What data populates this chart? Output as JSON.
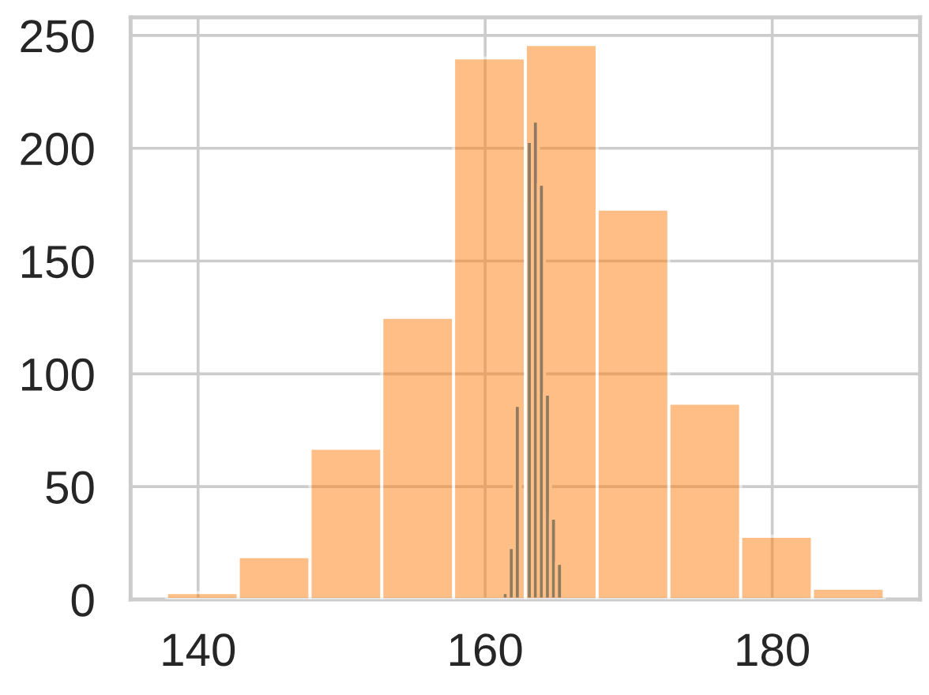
{
  "chart_data": {
    "type": "histogram",
    "bins": [
      137.8,
      142.8,
      147.8,
      152.8,
      157.8,
      162.8,
      167.8,
      172.8,
      177.8,
      182.8,
      187.8
    ],
    "series": [
      {
        "color": "#1f77b4",
        "bins": [
          161.19,
          161.61,
          162.03,
          162.45,
          162.87,
          163.29,
          163.71,
          164.13,
          164.55,
          164.97,
          165.39
        ],
        "values": [
          3,
          23,
          86,
          0,
          203,
          212,
          184,
          91,
          36,
          16
        ]
      },
      {
        "color": "#ff7f0e",
        "values": [
          3,
          19,
          67,
          125,
          240,
          246,
          173,
          87,
          28,
          5
        ]
      }
    ],
    "xlim": [
      135.3,
      190.3
    ],
    "ylim": [
      0,
      258
    ],
    "xticks": [
      140,
      160,
      180
    ],
    "yticks": [
      0,
      50,
      100,
      150,
      200,
      250
    ],
    "grid": true
  }
}
